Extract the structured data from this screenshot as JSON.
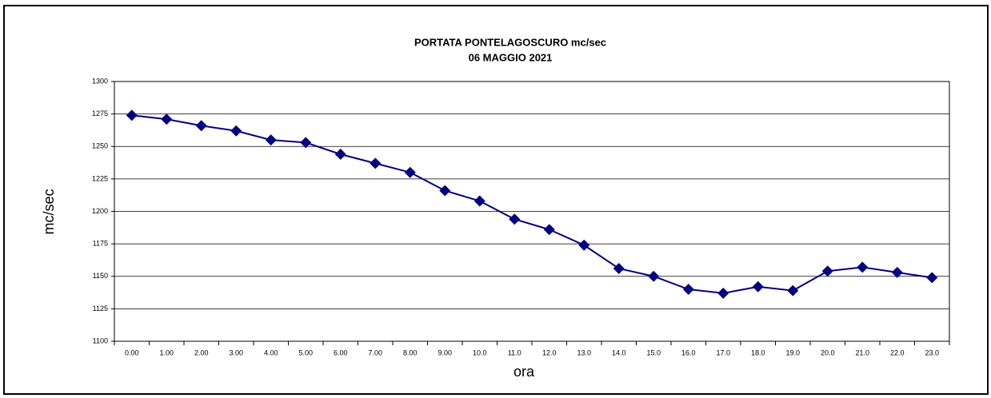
{
  "chart_data": {
    "type": "line",
    "title": "PORTATA PONTELAGOSCURO mc/sec",
    "subtitle": "06 MAGGIO 2021",
    "x_label": "ora",
    "y_label": "mc/sec",
    "categories": [
      "0.00",
      "1.00",
      "2.00",
      "3.00",
      "4.00",
      "5.00",
      "6.00",
      "7.00",
      "8.00",
      "9.00",
      "10.0",
      "11.0",
      "12.0",
      "13.0",
      "14.0",
      "15.0",
      "16.0",
      "17.0",
      "18.0",
      "19.0",
      "20.0",
      "21.0",
      "22.0",
      "23.0"
    ],
    "values": [
      1274,
      1271,
      1266,
      1262,
      1255,
      1253,
      1244,
      1237,
      1230,
      1216,
      1208,
      1194,
      1186,
      1174,
      1156,
      1150,
      1140,
      1137,
      1142,
      1139,
      1154,
      1157,
      1153,
      1149
    ],
    "color": "#000080",
    "ylim": [
      1100,
      1300
    ],
    "yticks": [
      1100,
      1125,
      1150,
      1175,
      1200,
      1225,
      1250,
      1275,
      1300
    ],
    "grid": true
  }
}
